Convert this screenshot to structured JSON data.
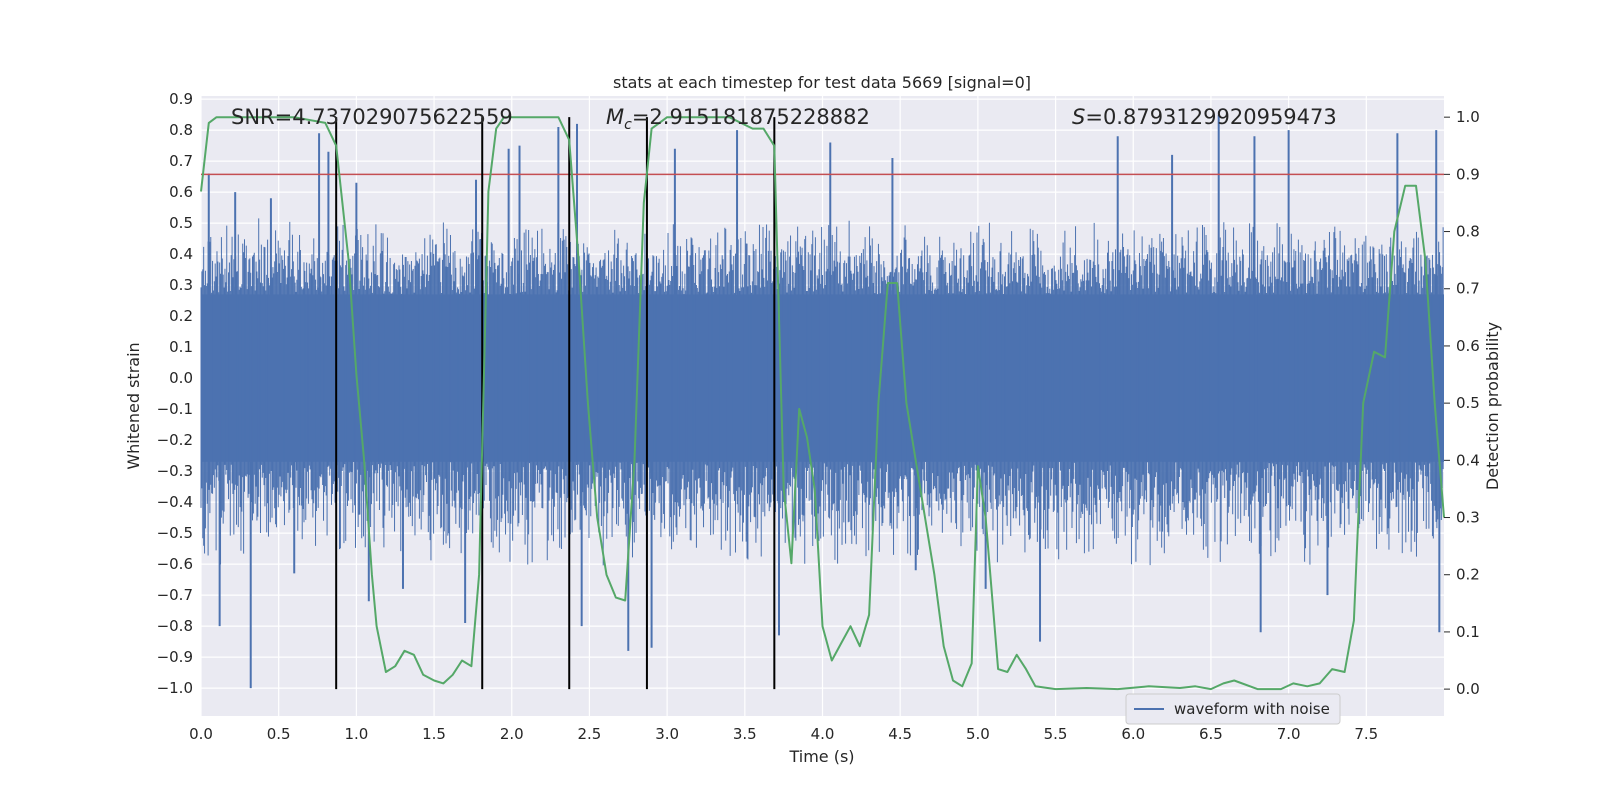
{
  "chart_data": {
    "type": "line",
    "title": "stats at each timestep for test data 5669 [signal=0]",
    "xlabel": "Time (s)",
    "ylabel": "Whitened strain",
    "y2label": "Detection probability",
    "xlim": [
      0.0,
      8.0
    ],
    "ylim": [
      -1.09,
      0.91
    ],
    "y2lim": [
      -0.047,
      1.037
    ],
    "x_ticks": [
      "0.0",
      "0.5",
      "1.0",
      "1.5",
      "2.0",
      "2.5",
      "3.0",
      "3.5",
      "4.0",
      "4.5",
      "5.0",
      "5.5",
      "6.0",
      "6.5",
      "7.0",
      "7.5"
    ],
    "y_ticks": [
      "0.9",
      "0.8",
      "0.7",
      "0.6",
      "0.5",
      "0.4",
      "0.3",
      "0.2",
      "0.1",
      "0.0",
      "−0.1",
      "−0.2",
      "−0.3",
      "−0.4",
      "−0.5",
      "−0.6",
      "−0.7",
      "−0.8",
      "−0.9",
      "−1.0"
    ],
    "y2_ticks": [
      "0.0",
      "0.1",
      "0.2",
      "0.3",
      "0.4",
      "0.5",
      "0.6",
      "0.7",
      "0.8",
      "0.9",
      "1.0"
    ],
    "grid": true,
    "legend_position": "bottom-right",
    "annotations": {
      "snr": "SNR=4.737029075622559",
      "mc_symbol": "M",
      "mc_sub": "c",
      "mc_value": "=2.915181875228882",
      "s_symbol": "S",
      "s_value": "=0.8793129920959473"
    },
    "threshold": {
      "value": 0.9,
      "axis": "y2",
      "color": "#c44e52"
    },
    "vlines_x": [
      0.87,
      1.81,
      2.37,
      2.87,
      3.69
    ],
    "series": [
      {
        "name": "waveform with noise",
        "kind": "waveform",
        "color": "#4c72b0",
        "noise_core": 0.27,
        "noise_envelope": [
          0.45,
          -0.52
        ],
        "spikes": [
          [
            0.05,
            0.66
          ],
          [
            0.12,
            -0.8
          ],
          [
            0.22,
            0.6
          ],
          [
            0.32,
            -1.0
          ],
          [
            0.45,
            0.58
          ],
          [
            0.6,
            -0.63
          ],
          [
            0.76,
            0.79
          ],
          [
            0.82,
            0.73
          ],
          [
            1.0,
            0.63
          ],
          [
            1.08,
            -0.72
          ],
          [
            1.3,
            -0.68
          ],
          [
            1.7,
            -0.79
          ],
          [
            1.77,
            0.64
          ],
          [
            1.98,
            0.74
          ],
          [
            2.05,
            0.75
          ],
          [
            2.3,
            0.81
          ],
          [
            2.42,
            0.82
          ],
          [
            2.45,
            -0.8
          ],
          [
            2.75,
            -0.88
          ],
          [
            2.9,
            -0.87
          ],
          [
            3.05,
            0.74
          ],
          [
            3.45,
            0.8
          ],
          [
            3.72,
            -0.83
          ],
          [
            4.05,
            0.76
          ],
          [
            4.45,
            0.71
          ],
          [
            4.6,
            -0.62
          ],
          [
            5.05,
            -0.68
          ],
          [
            5.4,
            -0.85
          ],
          [
            5.9,
            0.78
          ],
          [
            6.25,
            0.72
          ],
          [
            6.55,
            0.85
          ],
          [
            6.78,
            0.78
          ],
          [
            6.82,
            -0.82
          ],
          [
            7.0,
            0.8
          ],
          [
            7.25,
            -0.7
          ],
          [
            7.7,
            0.79
          ],
          [
            7.95,
            0.8
          ],
          [
            7.97,
            -0.82
          ]
        ]
      },
      {
        "name": "",
        "kind": "probability",
        "color": "#55a868",
        "x": [
          0.0,
          0.05,
          0.1,
          0.2,
          0.4,
          0.6,
          0.8,
          0.87,
          0.95,
          1.0,
          1.05,
          1.1,
          1.13,
          1.19,
          1.25,
          1.31,
          1.37,
          1.43,
          1.5,
          1.56,
          1.62,
          1.68,
          1.74,
          1.79,
          1.85,
          1.9,
          1.95,
          2.0,
          2.1,
          2.2,
          2.3,
          2.37,
          2.43,
          2.49,
          2.55,
          2.61,
          2.67,
          2.73,
          2.79,
          2.85,
          2.9,
          2.95,
          3.0,
          3.2,
          3.4,
          3.55,
          3.62,
          3.69,
          3.75,
          3.8,
          3.85,
          3.9,
          3.95,
          4.0,
          4.06,
          4.12,
          4.18,
          4.24,
          4.3,
          4.36,
          4.42,
          4.48,
          4.54,
          4.6,
          4.66,
          4.72,
          4.78,
          4.84,
          4.9,
          4.96,
          5.0,
          5.05,
          5.13,
          5.19,
          5.25,
          5.31,
          5.37,
          5.5,
          5.7,
          5.9,
          6.1,
          6.3,
          6.4,
          6.5,
          6.58,
          6.65,
          6.8,
          6.95,
          7.03,
          7.12,
          7.2,
          7.28,
          7.36,
          7.42,
          7.48,
          7.55,
          7.62,
          7.68,
          7.75,
          7.82,
          7.88,
          7.94,
          8.0
        ],
        "y": [
          0.87,
          0.99,
          1.0,
          1.0,
          1.0,
          1.0,
          0.99,
          0.95,
          0.75,
          0.55,
          0.4,
          0.2,
          0.11,
          0.03,
          0.04,
          0.067,
          0.06,
          0.025,
          0.015,
          0.01,
          0.025,
          0.05,
          0.04,
          0.2,
          0.87,
          0.98,
          1.0,
          1.0,
          1.0,
          1.0,
          1.0,
          0.96,
          0.75,
          0.5,
          0.3,
          0.2,
          0.16,
          0.155,
          0.4,
          0.85,
          0.98,
          0.99,
          1.0,
          1.0,
          1.0,
          0.98,
          0.98,
          0.95,
          0.35,
          0.22,
          0.49,
          0.44,
          0.35,
          0.11,
          0.05,
          0.08,
          0.11,
          0.075,
          0.13,
          0.5,
          0.71,
          0.71,
          0.5,
          0.4,
          0.3,
          0.2,
          0.075,
          0.015,
          0.005,
          0.045,
          0.39,
          0.3,
          0.035,
          0.03,
          0.06,
          0.035,
          0.005,
          0.0,
          0.002,
          0.0,
          0.005,
          0.002,
          0.005,
          0.0,
          0.01,
          0.015,
          0.0,
          0.0,
          0.01,
          0.005,
          0.01,
          0.035,
          0.03,
          0.12,
          0.5,
          0.59,
          0.58,
          0.8,
          0.88,
          0.88,
          0.75,
          0.5,
          0.3
        ]
      }
    ]
  }
}
